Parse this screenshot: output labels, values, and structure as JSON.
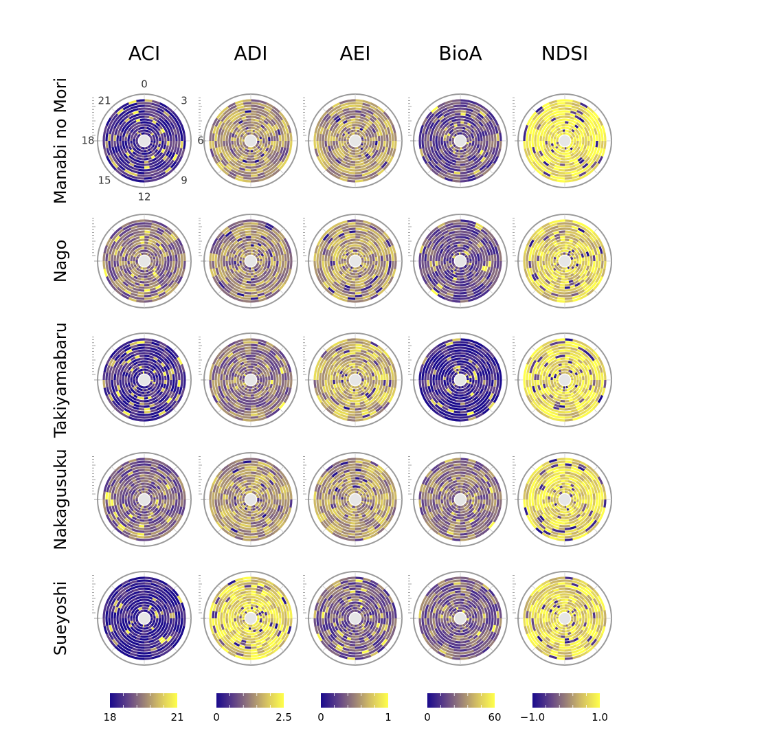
{
  "chart_data": {
    "type": "heatmap",
    "subtype": "polar",
    "columns": [
      "ACI",
      "ADI",
      "AEI",
      "BioA",
      "NDSI"
    ],
    "rows": [
      "Manabi no Mori",
      "Nago",
      "Takiyamabaru",
      "Nakagusuku",
      "Sueyoshi"
    ],
    "hour_labels": [
      "0",
      "3",
      "6",
      "9",
      "12",
      "15",
      "18",
      "21"
    ],
    "colorbars": [
      {
        "index": "ACI",
        "min_label": "18",
        "max_label": "21",
        "range": [
          18,
          21
        ]
      },
      {
        "index": "ADI",
        "min_label": "0",
        "max_label": "2.5",
        "range": [
          0,
          2.5
        ]
      },
      {
        "index": "AEI",
        "min_label": "0",
        "max_label": "1",
        "range": [
          0,
          1
        ]
      },
      {
        "index": "BioA",
        "min_label": "0",
        "max_label": "60",
        "range": [
          0,
          60
        ]
      },
      {
        "index": "NDSI",
        "min_label": "−1.0",
        "max_label": "1.0",
        "range": [
          -1,
          1
        ]
      }
    ],
    "approx_mean_normalized": [
      [
        0.15,
        0.6,
        0.6,
        0.3,
        0.92
      ],
      [
        0.45,
        0.55,
        0.62,
        0.3,
        0.8
      ],
      [
        0.15,
        0.45,
        0.7,
        0.1,
        0.85
      ],
      [
        0.4,
        0.6,
        0.6,
        0.45,
        0.85
      ],
      [
        0.08,
        0.85,
        0.35,
        0.38,
        0.85
      ]
    ],
    "colors": {
      "low": "#1a0a8c",
      "mid": "#9a8078",
      "high": "#ffff4a",
      "frame": "#9a9a9a",
      "center": "#e6e6e6"
    }
  }
}
